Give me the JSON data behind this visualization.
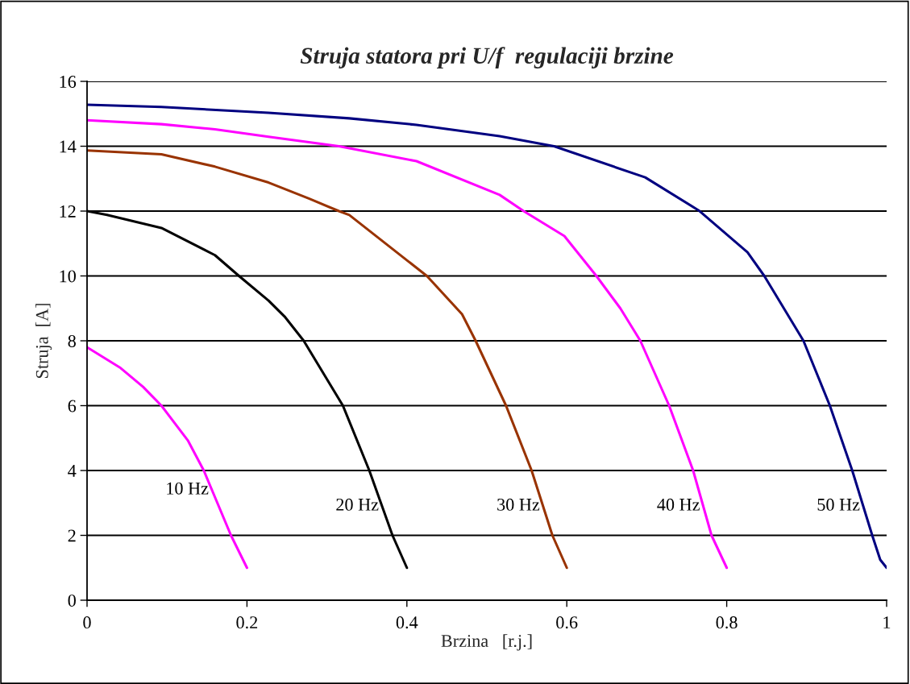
{
  "chart_data": {
    "type": "line",
    "title": "Struja statora pri U/f  regulaciji brzine",
    "xlabel": "Brzina   [r.j.]",
    "ylabel": "Struja  [A]",
    "xlim": [
      0,
      1
    ],
    "xticks": [
      0,
      0.2,
      0.4,
      0.6,
      0.8,
      1
    ],
    "ylim": [
      0,
      16
    ],
    "yticks": [
      0,
      2,
      4,
      6,
      8,
      10,
      12,
      14,
      16
    ],
    "grid": "y",
    "line_style": "solid",
    "series": [
      {
        "name": "10 Hz",
        "color": "#ff00ff",
        "x": [
          0,
          0.042,
          0.07,
          0.093,
          0.126,
          0.146,
          0.18,
          0.2
        ],
        "values": [
          7.8,
          7.16,
          6.58,
          6.0,
          4.93,
          4.0,
          2.0,
          1.0
        ]
      },
      {
        "name": "20 Hz",
        "color": "#000000",
        "x": [
          0,
          0.025,
          0.093,
          0.16,
          0.19,
          0.227,
          0.247,
          0.271,
          0.32,
          0.353,
          0.382,
          0.4
        ],
        "values": [
          12.0,
          11.88,
          11.48,
          10.64,
          10.0,
          9.24,
          8.75,
          8.0,
          6.0,
          4.0,
          2.0,
          1.0
        ]
      },
      {
        "name": "30 Hz",
        "color": "#993300",
        "x": [
          0,
          0.093,
          0.16,
          0.227,
          0.278,
          0.315,
          0.328,
          0.425,
          0.469,
          0.486,
          0.524,
          0.556,
          0.582,
          0.6
        ],
        "values": [
          13.87,
          13.75,
          13.37,
          12.88,
          12.38,
          12.0,
          11.88,
          10.0,
          8.82,
          8.0,
          6.0,
          4.0,
          2.0,
          1.0
        ]
      },
      {
        "name": "40 Hz",
        "color": "#ff00ff",
        "x": [
          0,
          0.093,
          0.16,
          0.227,
          0.315,
          0.412,
          0.516,
          0.546,
          0.597,
          0.637,
          0.667,
          0.692,
          0.728,
          0.758,
          0.781,
          0.8
        ],
        "values": [
          14.8,
          14.68,
          14.52,
          14.29,
          14.0,
          13.54,
          12.5,
          12.0,
          11.23,
          10.0,
          9.0,
          8.0,
          6.0,
          4.0,
          2.0,
          1.0
        ]
      },
      {
        "name": "50 Hz",
        "color": "#000080",
        "x": [
          0,
          0.093,
          0.227,
          0.328,
          0.412,
          0.516,
          0.584,
          0.698,
          0.765,
          0.826,
          0.847,
          0.896,
          0.929,
          0.957,
          0.982,
          0.992,
          1.0
        ],
        "values": [
          15.28,
          15.21,
          15.03,
          14.86,
          14.66,
          14.31,
          14.0,
          13.04,
          12.02,
          10.73,
          10.0,
          8.0,
          6.0,
          4.0,
          2.0,
          1.25,
          1.0
        ]
      }
    ]
  }
}
